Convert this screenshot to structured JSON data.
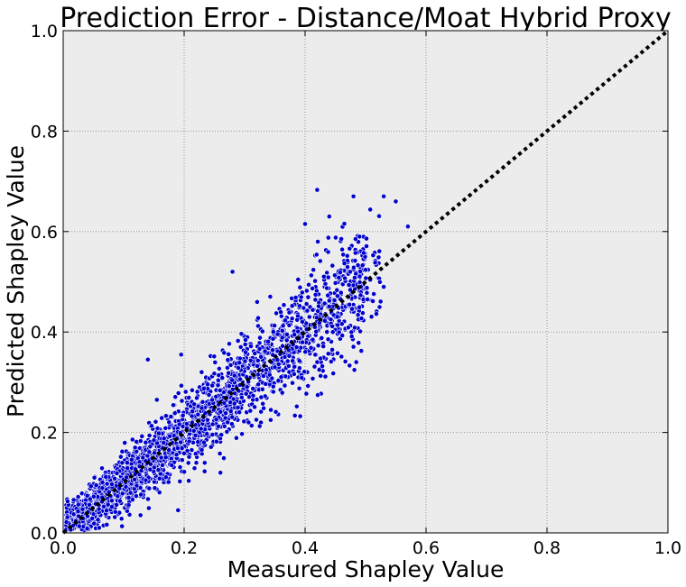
{
  "chart_data": {
    "type": "scatter",
    "title": "Prediction Error - Distance/Moat Hybrid Proxy",
    "xlabel": "Measured Shapley Value",
    "ylabel": "Predicted Shapley Value",
    "xlim": [
      0.0,
      1.0
    ],
    "ylim": [
      0.0,
      1.0
    ],
    "xticks": [
      "0.0",
      "0.2",
      "0.4",
      "0.6",
      "0.8",
      "1.0"
    ],
    "yticks": [
      "0.0",
      "0.2",
      "0.4",
      "0.6",
      "0.8",
      "1.0"
    ],
    "grid": true,
    "background_color": "#ececec",
    "point_color": "#0000cc",
    "reference_line": {
      "style": "dotted",
      "color": "#000000",
      "from": [
        0,
        0
      ],
      "to": [
        1,
        1
      ]
    },
    "series": [
      {
        "points_summary": "dense cloud of several thousand points along the diagonal, measured 0.0-0.58, predicted 0.0-0.68",
        "outliers": [
          {
            "x": 0.42,
            "y": 0.683
          },
          {
            "x": 0.48,
            "y": 0.67
          },
          {
            "x": 0.53,
            "y": 0.67
          },
          {
            "x": 0.55,
            "y": 0.66
          },
          {
            "x": 0.4,
            "y": 0.615
          },
          {
            "x": 0.57,
            "y": 0.61
          },
          {
            "x": 0.44,
            "y": 0.63
          },
          {
            "x": 0.49,
            "y": 0.59
          },
          {
            "x": 0.28,
            "y": 0.52
          },
          {
            "x": 0.53,
            "y": 0.49
          },
          {
            "x": 0.14,
            "y": 0.345
          },
          {
            "x": 0.195,
            "y": 0.355
          },
          {
            "x": 0.155,
            "y": 0.265
          },
          {
            "x": 0.26,
            "y": 0.12
          },
          {
            "x": 0.19,
            "y": 0.045
          },
          {
            "x": 0.35,
            "y": 0.33
          },
          {
            "x": 0.42,
            "y": 0.34
          }
        ]
      }
    ]
  }
}
